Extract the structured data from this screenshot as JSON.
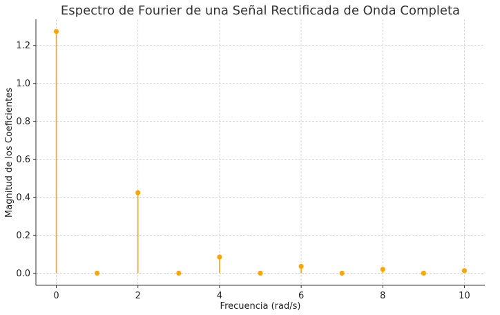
{
  "chart_data": {
    "type": "stem",
    "title": "Espectro de Fourier de una Señal Rectificada de Onda Completa",
    "xlabel": "Frecuencia (rad/s)",
    "ylabel": "Magnitud de los Coeficientes",
    "x": [
      0,
      1,
      2,
      3,
      4,
      5,
      6,
      7,
      8,
      9,
      10
    ],
    "values": [
      1.273,
      0.0,
      0.424,
      0.0,
      0.085,
      0.0,
      0.036,
      0.0,
      0.02,
      0.0,
      0.013
    ],
    "xlim": [
      -0.5,
      10.5
    ],
    "ylim": [
      -0.064,
      1.337
    ],
    "xticks": [
      0,
      2,
      4,
      6,
      8,
      10
    ],
    "yticks": [
      0.0,
      0.2,
      0.4,
      0.6,
      0.8,
      1.0,
      1.2
    ],
    "xtick_labels": [
      "0",
      "2",
      "4",
      "6",
      "8",
      "10"
    ],
    "ytick_labels": [
      "0.0",
      "0.2",
      "0.4",
      "0.6",
      "0.8",
      "1.0",
      "1.2"
    ],
    "grid": true,
    "color": "#FFA500"
  }
}
